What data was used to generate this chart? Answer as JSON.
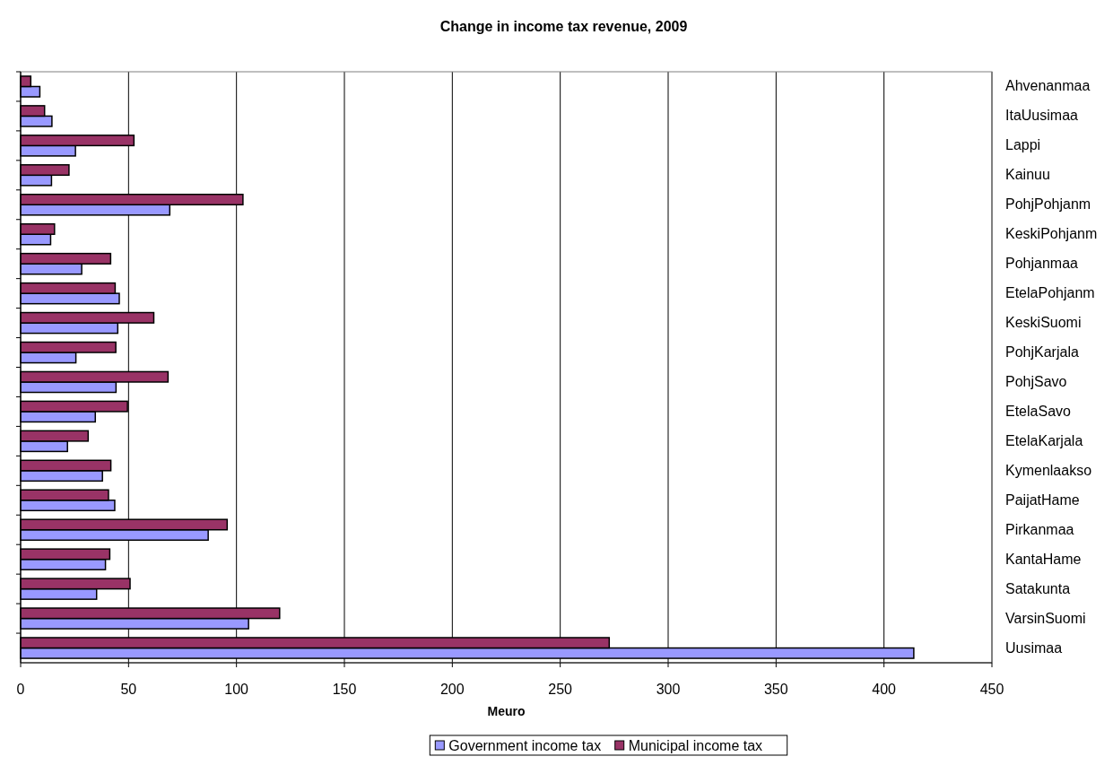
{
  "chart_data": {
    "type": "bar",
    "orientation": "horizontal",
    "title": "Change in income tax revenue, 2009",
    "xlabel": "Meuro",
    "categories": [
      "Ahvenanmaa",
      "ItaUusimaa",
      "Lappi",
      "Kainuu",
      "PohjPohjanm",
      "KeskiPohjanm",
      "Pohjanmaa",
      "EtelaPohjanm",
      "KeskiSuomi",
      "PohjKarjala",
      "PohjSavo",
      "EtelaSavo",
      "EtelaKarjala",
      "Kymenlaakso",
      "PaijatHame",
      "Pirkanmaa",
      "KantaHame",
      "Satakunta",
      "VarsinSuomi",
      "Uusimaa"
    ],
    "series": [
      {
        "name": "Government income tax",
        "color": "#9999ff",
        "values": [
          8.9,
          14.5,
          25.4,
          14.3,
          69.1,
          13.9,
          28.3,
          45.7,
          45,
          25.6,
          44.2,
          34.6,
          21.7,
          37.9,
          43.6,
          86.9,
          39.3,
          35.2,
          105.6,
          413.8
        ]
      },
      {
        "name": "Municipal income tax",
        "color": "#993366",
        "values": [
          4.7,
          11.1,
          52.5,
          22.4,
          103,
          15.7,
          41.7,
          43.8,
          61.7,
          44.1,
          68.3,
          49.5,
          31.3,
          41.8,
          40.7,
          95.7,
          41.3,
          50.7,
          120,
          272.7
        ]
      }
    ],
    "xlim": [
      0,
      450
    ],
    "xticks": [
      0,
      50,
      100,
      150,
      200,
      250,
      300,
      350,
      400,
      450
    ],
    "grid": "x",
    "legend": "bottom"
  }
}
